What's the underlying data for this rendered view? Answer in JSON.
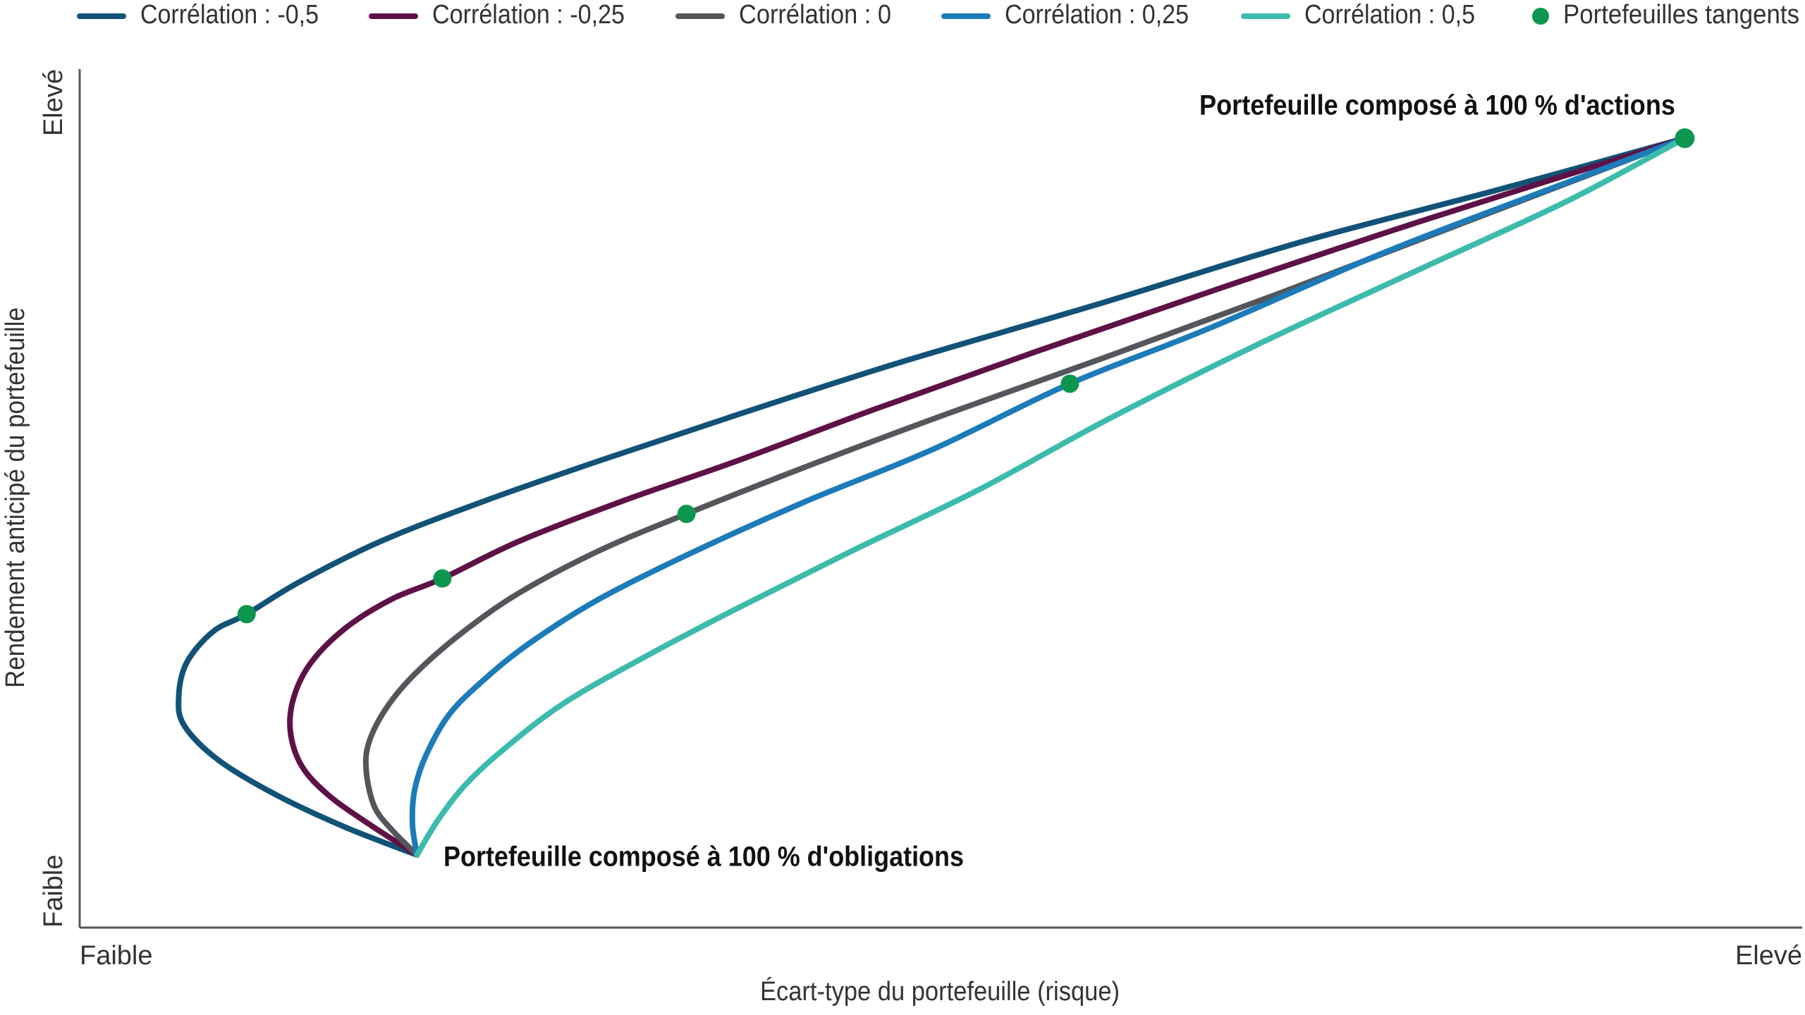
{
  "chart_data": {
    "type": "line",
    "xlabel": "Écart-type du portefeuille (risque)",
    "ylabel": "Rendement anticipé du portefeuille",
    "xlim": [
      0,
      1496
    ],
    "ylim": [
      0,
      745
    ],
    "xticks": [
      {
        "value": 0,
        "label": "Faible"
      },
      {
        "value": 1496,
        "label": "Elevé"
      }
    ],
    "yticks": [
      {
        "value": 0,
        "label": "Faible"
      },
      {
        "value": 745,
        "label": "Elevé"
      }
    ],
    "grid": false,
    "legend": "top",
    "series": [
      {
        "name": "Corrélation : -0,5",
        "color": "#125277",
        "x": [
          293,
          231,
          171,
          121,
          91,
          86,
          93,
          116,
          145,
          191,
          261,
          351,
          451,
          571,
          711,
          881,
          1061,
          1231,
          1394
        ],
        "values": [
          63,
          87,
          115,
          145,
          175,
          200,
          230,
          257,
          272,
          300,
          335,
          370,
          405,
          445,
          490,
          540,
          595,
          640,
          685
        ]
      },
      {
        "name": "Corrélation : -0,25",
        "color": "#5e1146",
        "x": [
          293,
          251,
          216,
          193,
          183,
          186,
          201,
          231,
          271,
          315,
          381,
          471,
          571,
          691,
          831,
          991,
          1171,
          1394
        ],
        "values": [
          63,
          90,
          115,
          140,
          170,
          200,
          230,
          260,
          285,
          303,
          335,
          370,
          405,
          450,
          500,
          555,
          615,
          685
        ]
      },
      {
        "name": "Corrélation : 0",
        "color": "#54565b",
        "x": [
          293,
          271,
          256,
          249,
          251,
          266,
          291,
          331,
          381,
          451,
          527,
          631,
          751,
          891,
          1041,
          1211,
          1394
        ],
        "values": [
          63,
          85,
          105,
          135,
          160,
          190,
          220,
          255,
          290,
          327,
          359,
          400,
          445,
          495,
          550,
          615,
          685
        ]
      },
      {
        "name": "Corrélation : 0,25",
        "color": "#1c7bb8",
        "x": [
          293,
          289,
          291,
          301,
          321,
          351,
          391,
          451,
          531,
          631,
          741,
          860,
          981,
          1131,
          1261,
          1394
        ],
        "values": [
          63,
          90,
          120,
          150,
          185,
          215,
          247,
          285,
          325,
          370,
          415,
          472,
          520,
          585,
          635,
          685
        ]
      },
      {
        "name": "Corrélation : 0,5",
        "color": "#3cbbad",
        "x": [
          293,
          311,
          336,
          371,
          421,
          491,
          571,
          671,
          781,
          891,
          1021,
          1161,
          1291,
          1394
        ],
        "values": [
          63,
          93,
          125,
          157,
          195,
          235,
          277,
          327,
          380,
          440,
          505,
          570,
          630,
          685
        ]
      },
      {
        "name": "Portefeuilles tangents",
        "color": "#0c9650",
        "type": "scatter",
        "x": [
          145,
          315,
          527,
          860,
          1394
        ],
        "values": [
          272,
          303,
          359,
          472,
          685
        ]
      }
    ],
    "annotations": [
      "Portefeuille composé à 100 % d'actions",
      "Portefeuille composé à 100 % d'obligations"
    ]
  }
}
